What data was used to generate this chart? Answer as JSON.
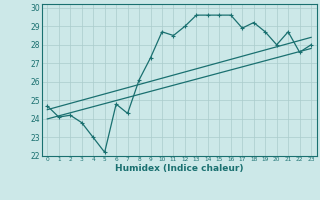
{
  "title": "",
  "xlabel": "Humidex (Indice chaleur)",
  "ylabel": "",
  "bg_color": "#cce8e8",
  "line_color": "#1a7070",
  "grid_color": "#aacccc",
  "xlim": [
    -0.5,
    23.5
  ],
  "ylim": [
    22,
    30.2
  ],
  "yticks": [
    22,
    23,
    24,
    25,
    26,
    27,
    28,
    29,
    30
  ],
  "xticks": [
    0,
    1,
    2,
    3,
    4,
    5,
    6,
    7,
    8,
    9,
    10,
    11,
    12,
    13,
    14,
    15,
    16,
    17,
    18,
    19,
    20,
    21,
    22,
    23
  ],
  "line1_x": [
    0,
    1,
    2,
    3,
    4,
    5,
    6,
    7,
    8,
    9,
    10,
    11,
    12,
    13,
    14,
    15,
    16,
    17,
    18,
    19,
    20,
    21,
    22,
    23
  ],
  "line1_y": [
    24.7,
    24.1,
    24.2,
    23.8,
    23.0,
    22.2,
    24.8,
    24.3,
    26.1,
    27.3,
    28.7,
    28.5,
    29.0,
    29.6,
    29.6,
    29.6,
    29.6,
    28.9,
    29.2,
    28.7,
    28.0,
    28.7,
    27.6,
    28.0
  ],
  "line2_x": [
    0,
    23
  ],
  "line2_y": [
    24.0,
    27.8
  ],
  "line3_x": [
    0,
    23
  ],
  "line3_y": [
    24.5,
    28.4
  ]
}
